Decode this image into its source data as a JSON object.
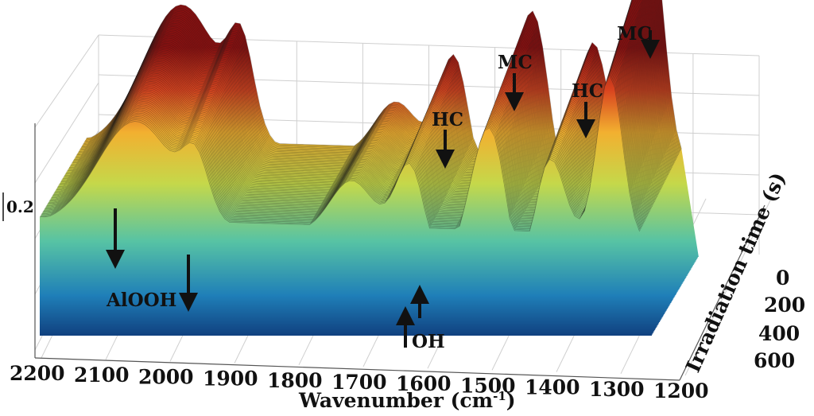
{
  "chart_data": {
    "type": "surface",
    "title": "",
    "xlabel": "Wavenumber (cm",
    "xlabel_sup": "-1",
    "xlabel_close": ")",
    "ylabel": "Irradiation time (s)",
    "zlabel": "0.2",
    "x_ticks": [
      "2200",
      "2100",
      "2000",
      "1900",
      "1800",
      "1700",
      "1600",
      "1500",
      "1400",
      "1300",
      "1200"
    ],
    "y_ticks": [
      "0",
      "200",
      "400",
      "600"
    ],
    "xlim": [
      2200,
      1200
    ],
    "ylim": [
      0,
      600
    ],
    "grid": true,
    "colormap": [
      "#0b2a6b",
      "#1f7fb8",
      "#57c3a4",
      "#c5d84a",
      "#f2b030",
      "#d9441f",
      "#8c1010"
    ],
    "annotations": [
      {
        "label": "HC",
        "direction": "down"
      },
      {
        "label": "MC",
        "direction": "down"
      },
      {
        "label": "HC",
        "direction": "down"
      },
      {
        "label": "MC",
        "direction": "down"
      },
      {
        "label": "AlOOH",
        "direction": "down"
      },
      {
        "label": "OH",
        "direction": "up"
      }
    ]
  }
}
